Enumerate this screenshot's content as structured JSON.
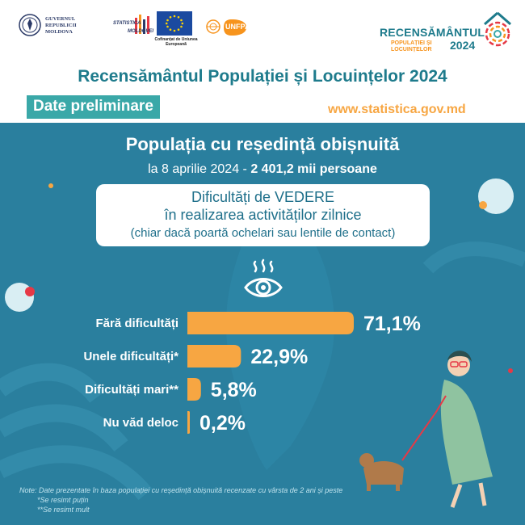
{
  "header": {
    "gov_logo_text": [
      "GUVERNUL",
      "REPUBLICII",
      "MOLDOVA"
    ],
    "stat_logo_text": [
      "STATISTICA",
      "MOLDOVEI"
    ],
    "eu_caption": "Cofinanțat de Uniunea Europeană",
    "unfpa_text": "UNFPA",
    "census_logo": {
      "line1": "RECENSĂMÂNTUL",
      "line2a": "POPULAȚIEI ȘI",
      "line2b": "LOCUINȚELOR",
      "year": "2024"
    },
    "title": "Recensământul Populației și Locuințelor 2024",
    "badge": "Date preliminare",
    "website": "www.statistica.gov.md"
  },
  "population": {
    "title": "Populația cu reședință obișnuită",
    "date_prefix": "la 8 aprilie 2024 -",
    "total": "2 401,2 mii persoane"
  },
  "box": {
    "line1": "Dificultăți de VEDERE",
    "line2": "în realizarea activităților zilnice",
    "line3": "(chiar dacă poartă ochelari sau lentile de contact)"
  },
  "icon": "eye-icon",
  "chart_data": {
    "type": "bar",
    "orientation": "horizontal",
    "categories": [
      "Fără dificultăți",
      "Unele dificultăți*",
      "Dificultăți mari**",
      "Nu văd deloc"
    ],
    "values": [
      71.1,
      22.9,
      5.8,
      0.2
    ],
    "labels": [
      "71,1%",
      "22,9%",
      "5,8%",
      "0,2%"
    ],
    "unit": "%",
    "xlim": [
      0,
      71.1
    ],
    "bar_color": "#f7a642"
  },
  "notes": {
    "line1": "Note: Date prezentate în baza populației cu reședință obișnuită recenzate cu vârsta de 2 ani și peste",
    "line2": "*Se resimt puțin",
    "line3": "**Se resimt mult"
  },
  "colors": {
    "teal": "#2a7f9e",
    "title_teal": "#1e7b8c",
    "orange": "#f7a642",
    "badge": "#3aa8a8"
  }
}
